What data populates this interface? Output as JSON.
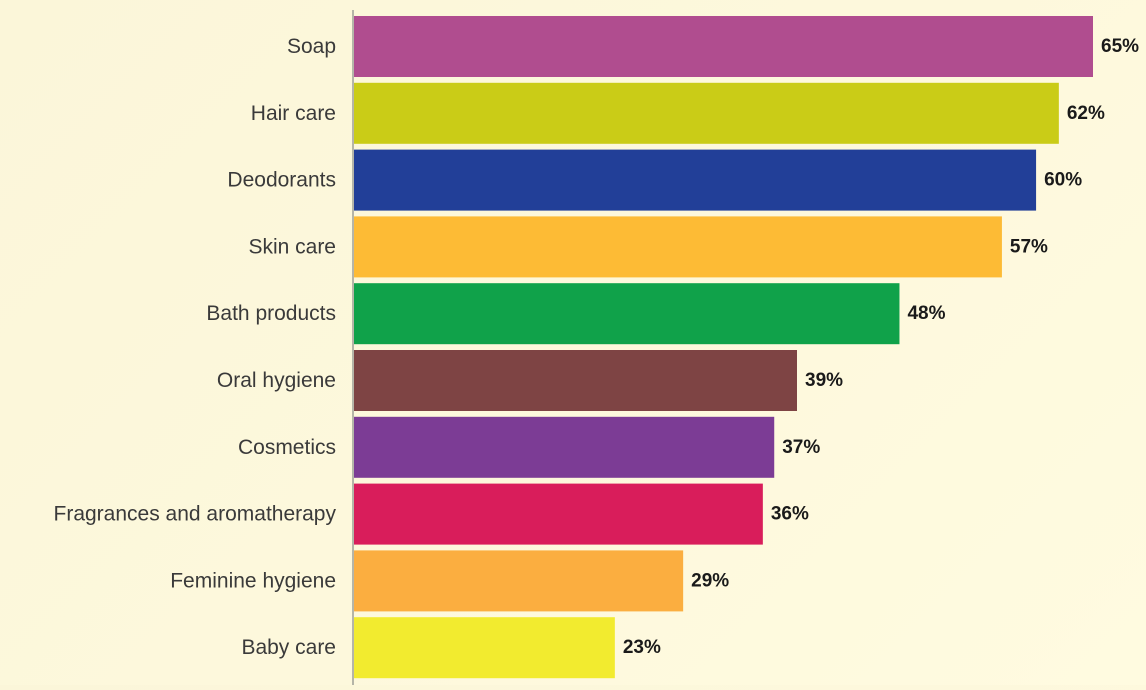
{
  "chart_data": {
    "type": "bar",
    "orientation": "horizontal",
    "categories": [
      "Soap",
      "Hair care",
      "Deodorants",
      "Skin care",
      "Bath products",
      "Oral hygiene",
      "Cosmetics",
      "Fragrances and aromatherapy",
      "Feminine hygiene",
      "Baby care"
    ],
    "values": [
      65,
      62,
      60,
      57,
      48,
      39,
      37,
      36,
      29,
      23
    ],
    "value_labels": [
      "65%",
      "62%",
      "60%",
      "57%",
      "48%",
      "39%",
      "37%",
      "36%",
      "29%",
      "23%"
    ],
    "colors": [
      "#b04d8f",
      "#cacc17",
      "#223f98",
      "#fdbb35",
      "#10a24a",
      "#7e4444",
      "#7c3c95",
      "#d91d5b",
      "#fbae40",
      "#f2eb2f"
    ],
    "unit": "%",
    "xlim": [
      0,
      65
    ],
    "grid": false,
    "title": "",
    "xlabel": "",
    "ylabel": ""
  }
}
